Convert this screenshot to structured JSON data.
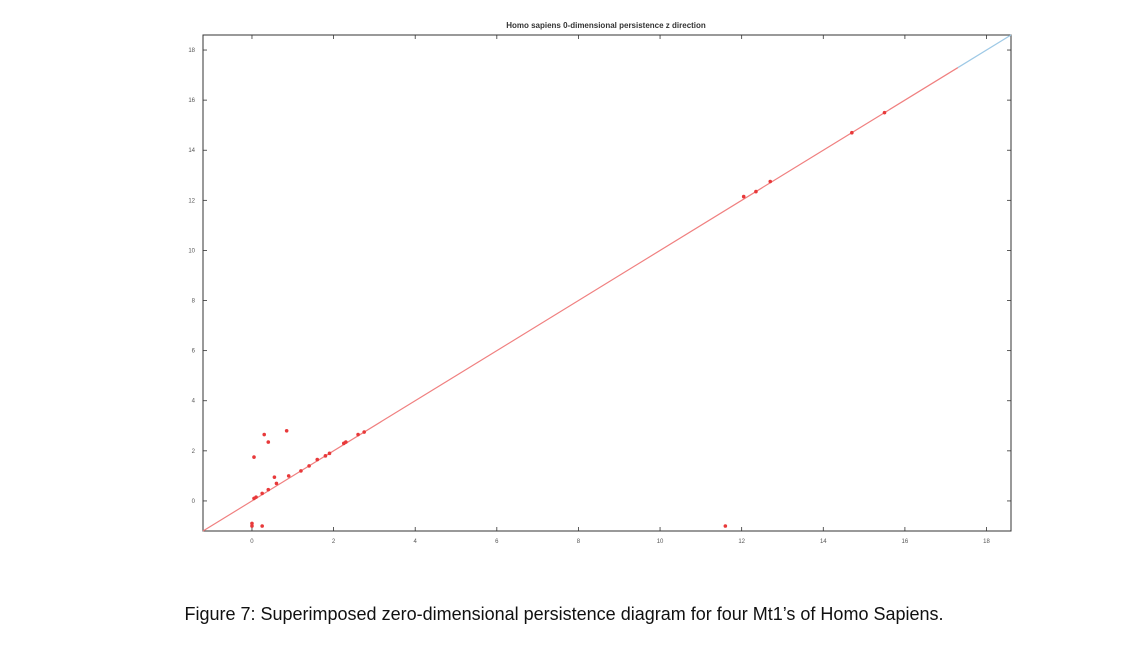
{
  "chart_data": {
    "type": "scatter",
    "title": "Homo sapiens 0-dimensional persistence z direction",
    "xlabel": "",
    "ylabel": "",
    "xlim": [
      -1.2,
      18.6
    ],
    "ylim": [
      -1.2,
      18.6
    ],
    "xticks": [
      0,
      2,
      4,
      6,
      8,
      10,
      12,
      14,
      16,
      18
    ],
    "yticks": [
      0,
      2,
      4,
      6,
      8,
      10,
      12,
      14,
      16,
      18
    ],
    "grid": false,
    "legend": "none",
    "diagonal": {
      "from": [
        -1.2,
        -1.2
      ],
      "to": [
        18.6,
        18.6
      ],
      "color": "#f08080",
      "end_color": "#9ec9e6",
      "end_segment_from": 17.3
    },
    "series": [
      {
        "color": "#e8393a",
        "points": [
          [
            0.0,
            -1.0
          ],
          [
            0.0,
            -0.9
          ],
          [
            0.25,
            -1.0
          ],
          [
            11.6,
            -1.0
          ],
          [
            0.05,
            0.1
          ],
          [
            0.1,
            0.15
          ],
          [
            0.25,
            0.3
          ],
          [
            0.4,
            0.45
          ],
          [
            0.6,
            0.7
          ],
          [
            0.9,
            1.0
          ],
          [
            1.2,
            1.2
          ],
          [
            1.4,
            1.4
          ],
          [
            1.6,
            1.65
          ],
          [
            1.8,
            1.8
          ],
          [
            1.9,
            1.9
          ],
          [
            2.25,
            2.3
          ],
          [
            2.3,
            2.35
          ],
          [
            2.6,
            2.65
          ],
          [
            2.75,
            2.75
          ],
          [
            0.05,
            1.75
          ],
          [
            0.3,
            2.65
          ],
          [
            0.4,
            2.35
          ],
          [
            0.85,
            2.8
          ],
          [
            0.55,
            0.95
          ],
          [
            12.05,
            12.15
          ],
          [
            12.35,
            12.35
          ],
          [
            12.7,
            12.75
          ],
          [
            14.7,
            14.7
          ],
          [
            15.5,
            15.5
          ]
        ]
      }
    ]
  },
  "caption": "Figure 7: Superimposed zero-dimensional persistence diagram for four Mt1’s of Homo Sapiens."
}
